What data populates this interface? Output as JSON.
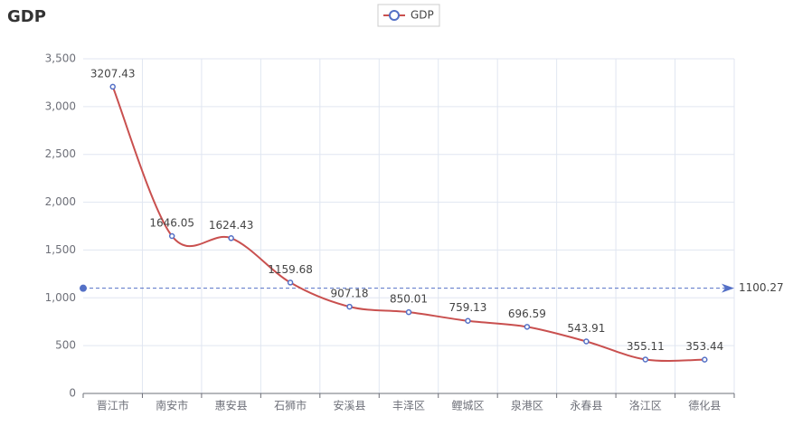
{
  "chart_data": {
    "type": "line",
    "title": "GDP",
    "categories": [
      "晋江市",
      "南安市",
      "惠安县",
      "石狮市",
      "安溪县",
      "丰泽区",
      "鲤城区",
      "泉港区",
      "永春县",
      "洛江区",
      "德化县"
    ],
    "series": [
      {
        "name": "GDP",
        "color": "#c9504f",
        "marker_color": "#5470c6",
        "values": [
          3207.43,
          1646.05,
          1624.43,
          1159.68,
          907.18,
          850.01,
          759.13,
          696.59,
          543.91,
          355.11,
          353.44
        ]
      }
    ],
    "ylim": [
      0,
      3500
    ],
    "yticks": [
      0,
      500,
      {
        "value": 1000,
        "label": "1,000"
      },
      {
        "value": 1500,
        "label": "1,500"
      },
      {
        "value": 2000,
        "label": "2,000"
      },
      {
        "value": 2500,
        "label": "2,500"
      },
      {
        "value": 3000,
        "label": "3,000"
      },
      {
        "value": 3500,
        "label": "3,500"
      }
    ],
    "average_line": 1100.27,
    "average_line_color": "#5470c6",
    "grid": true,
    "legend": "top"
  }
}
